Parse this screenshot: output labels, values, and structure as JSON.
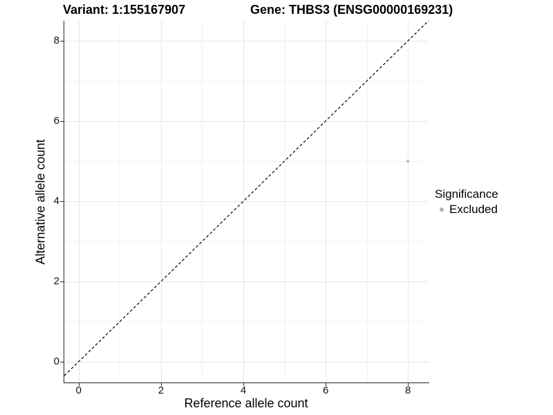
{
  "header": {
    "variant_title": "Variant: 1:155167907",
    "gene_title": "Gene: THBS3 (ENSG00000169231)"
  },
  "legend": {
    "title": "Significance"
  },
  "colors": {
    "grid_major": "#e6e6e6",
    "grid_minor": "#f2f2f2",
    "axis_line": "#262626",
    "dashed_line": "#000000",
    "point": "#b3b3b3",
    "background": "#ffffff"
  },
  "chart_data": {
    "type": "scatter",
    "title": "Variant: 1:155167907   Gene: THBS3 (ENSG00000169231)",
    "xlabel": "Reference allele count",
    "ylabel": "Alternative allele count",
    "xlim": [
      -0.35,
      8.5
    ],
    "ylim": [
      -0.52,
      8.5
    ],
    "x_ticks": [
      0,
      2,
      4,
      6,
      8
    ],
    "y_ticks": [
      0,
      2,
      4,
      6,
      8
    ],
    "x_minor_ticks": [
      1,
      3,
      5,
      7
    ],
    "y_minor_ticks": [
      1,
      3,
      5,
      7
    ],
    "grid": true,
    "legend_position": "right",
    "legend_title": "Significance",
    "series": [
      {
        "name": "Excluded",
        "color": "#b3b3b3",
        "points": [
          {
            "x": 8,
            "y": 5
          }
        ]
      }
    ],
    "reference_line": {
      "type": "identity",
      "equation": "y = x",
      "style": "dashed",
      "color": "#000000"
    }
  }
}
